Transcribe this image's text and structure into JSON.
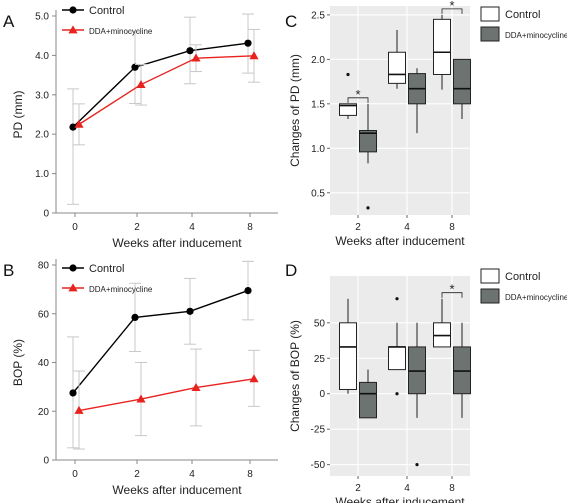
{
  "chart_data": [
    {
      "panel": "A",
      "type": "line",
      "x_categories": [
        "0",
        "2",
        "4",
        "8"
      ],
      "xlabel": "Weeks after inducement",
      "ylabel": "PD (mm)",
      "ylim": [
        0,
        5
      ],
      "yticks": [
        "0",
        "1.0",
        "2.0",
        "3.0",
        "4.0",
        "5.0"
      ],
      "legend_position": "top-left",
      "series": [
        {
          "name": "Control",
          "marker": "circle",
          "color": "#000000",
          "values": [
            2.18,
            3.7,
            4.12,
            4.31
          ],
          "err_low": [
            0.22,
            2.78,
            3.28,
            3.55
          ],
          "err_high": [
            3.15,
            4.6,
            4.97,
            5.05
          ]
        },
        {
          "name": "DDA+minocycline",
          "marker": "triangle",
          "color": "#e8231f",
          "values": [
            2.25,
            3.26,
            3.93,
            3.99
          ],
          "err_low": [
            1.73,
            2.74,
            3.59,
            3.32
          ],
          "err_high": [
            2.77,
            3.77,
            4.27,
            4.66
          ]
        }
      ]
    },
    {
      "panel": "B",
      "type": "line",
      "x_categories": [
        "0",
        "2",
        "4",
        "8"
      ],
      "xlabel": "Weeks after inducement",
      "ylabel": "BOP (%)",
      "ylim": [
        0,
        80
      ],
      "yticks": [
        "0",
        "20",
        "40",
        "60",
        "80"
      ],
      "legend_position": "top-left",
      "series": [
        {
          "name": "Control",
          "marker": "circle",
          "color": "#000000",
          "values": [
            27.5,
            58.5,
            61.0,
            69.5
          ],
          "err_low": [
            5,
            44.5,
            47.5,
            57.5
          ],
          "err_high": [
            50.5,
            72.5,
            74.5,
            81.5
          ]
        },
        {
          "name": "DDA+minocycline",
          "marker": "triangle",
          "color": "#e8231f",
          "values": [
            20.3,
            25.0,
            29.7,
            33.3
          ],
          "err_low": [
            4.5,
            10,
            14,
            22
          ],
          "err_high": [
            36.5,
            40,
            45.5,
            45
          ]
        }
      ]
    },
    {
      "panel": "C",
      "type": "box",
      "categories": [
        "2",
        "4",
        "8"
      ],
      "xlabel": "Weeks after inducement",
      "ylabel": "Changes of PD (mm)",
      "ylim": [
        0.25,
        2.6
      ],
      "yticks": [
        "0.5",
        "1.0",
        "1.5",
        "2.0",
        "2.5"
      ],
      "legend_position": "top-right",
      "significance": [
        "*",
        "",
        "*"
      ],
      "series": [
        {
          "name": "Control",
          "color": "#ffffff",
          "boxes": [
            {
              "min": 1.33,
              "q1": 1.37,
              "median": 1.48,
              "q3": 1.5,
              "max": 1.5,
              "outliers": [
                1.83
              ]
            },
            {
              "min": 1.67,
              "q1": 1.73,
              "median": 1.83,
              "q3": 2.08,
              "max": 2.33,
              "outliers": []
            },
            {
              "min": 1.66,
              "q1": 1.83,
              "median": 2.08,
              "q3": 2.45,
              "max": 2.5,
              "outliers": []
            }
          ]
        },
        {
          "name": "DDA+minocycline",
          "color": "#6c7370",
          "boxes": [
            {
              "min": 0.83,
              "q1": 0.96,
              "median": 1.17,
              "q3": 1.2,
              "max": 1.5,
              "outliers": [
                0.33
              ]
            },
            {
              "min": 1.17,
              "q1": 1.5,
              "median": 1.67,
              "q3": 1.84,
              "max": 1.9,
              "outliers": []
            },
            {
              "min": 1.33,
              "q1": 1.5,
              "median": 1.67,
              "q3": 2.0,
              "max": 2.0,
              "outliers": []
            }
          ]
        }
      ]
    },
    {
      "panel": "D",
      "type": "box",
      "categories": [
        "2",
        "4",
        "8"
      ],
      "xlabel": "Weeks after inducement",
      "ylabel": "Changes of BOP (%)",
      "ylim": [
        -58,
        83
      ],
      "yticks": [
        "-50",
        "-25",
        "0",
        "25",
        "50"
      ],
      "legend_position": "top-right",
      "significance": [
        "",
        "",
        "*"
      ],
      "series": [
        {
          "name": "Control",
          "color": "#ffffff",
          "boxes": [
            {
              "min": 0,
              "q1": 3,
              "median": 33,
              "q3": 50,
              "max": 67,
              "outliers": []
            },
            {
              "min": 17,
              "q1": 17,
              "median": 33,
              "q3": 33,
              "max": 50,
              "outliers": [
                67,
                0
              ]
            },
            {
              "min": 33,
              "q1": 33,
              "median": 41,
              "q3": 50,
              "max": 67,
              "outliers": []
            }
          ]
        },
        {
          "name": "DDA+minocycline",
          "color": "#6c7370",
          "boxes": [
            {
              "min": -17,
              "q1": -17,
              "median": 0,
              "q3": 8,
              "max": 17,
              "outliers": []
            },
            {
              "min": -17,
              "q1": 0,
              "median": 16,
              "q3": 33,
              "max": 50,
              "outliers": [
                -50
              ]
            },
            {
              "min": -17,
              "q1": 0,
              "median": 16,
              "q3": 33,
              "max": 50,
              "outliers": []
            }
          ]
        }
      ]
    }
  ],
  "panel_labels": [
    "A",
    "B",
    "C",
    "D"
  ]
}
